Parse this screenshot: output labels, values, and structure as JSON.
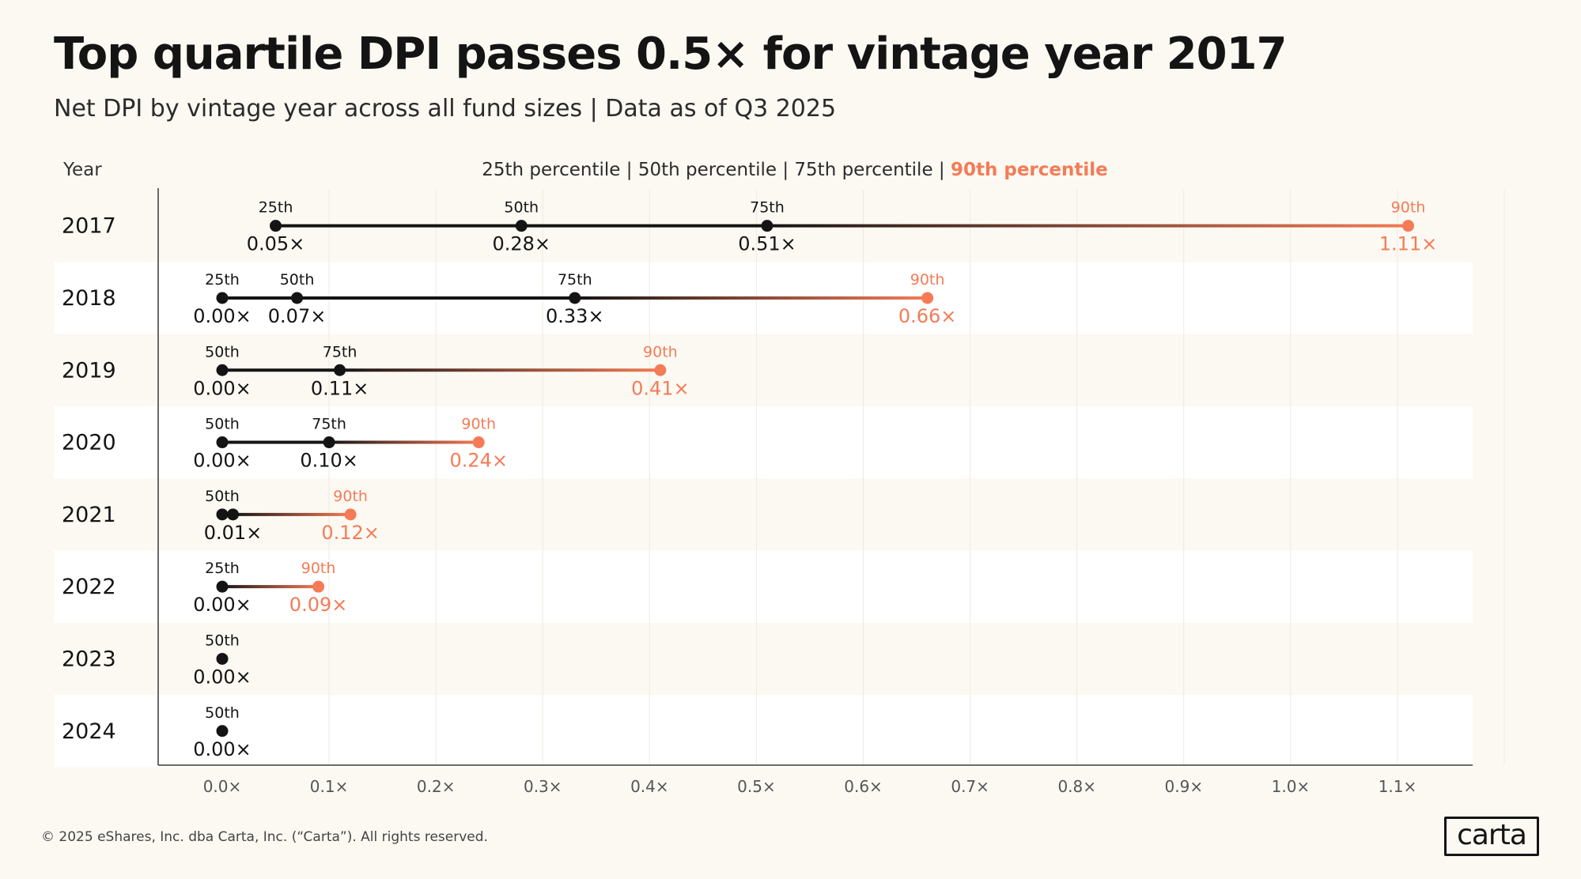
{
  "header": {
    "title": "Top quartile DPI passes 0.5× for vintage year 2017",
    "subtitle": "Net DPI by vintage year across all fund sizes | Data as of Q3 2025"
  },
  "footer": {
    "copyright": "© 2025 eShares, Inc. dba Carta, Inc. (“Carta”). All rights reserved.",
    "logo_text": "carta"
  },
  "chart_data": {
    "type": "dot-range",
    "title": "Top quartile DPI passes 0.5× for vintage year 2017",
    "subtitle": "Net DPI by vintage year across all fund sizes | Data as of Q3 2025",
    "ylabel": "Year",
    "legend": {
      "items": [
        "25th percentile",
        "50th percentile",
        "75th percentile",
        "90th percentile"
      ],
      "separator": "|",
      "placement": "top"
    },
    "xlim": [
      -0.06,
      1.17
    ],
    "x_ticks": [
      0.0,
      0.1,
      0.2,
      0.3,
      0.4,
      0.5,
      0.6,
      0.7,
      0.8,
      0.9,
      1.0,
      1.1
    ],
    "x_tick_labels": [
      "0.0×",
      "0.1×",
      "0.2×",
      "0.3×",
      "0.4×",
      "0.5×",
      "0.6×",
      "0.7×",
      "0.8×",
      "0.9×",
      "1.0×",
      "1.1×"
    ],
    "colors": {
      "dark": "#141414",
      "accent": "#f47b56",
      "band": "#ffffff"
    },
    "rows": [
      {
        "year": "2017",
        "points": [
          {
            "label": "25th",
            "value": 0.05,
            "text": "0.05×",
            "dot": true
          },
          {
            "label": "50th",
            "value": 0.28,
            "text": "0.28×",
            "dot": true
          },
          {
            "label": "75th",
            "value": 0.51,
            "text": "0.51×",
            "dot": true
          },
          {
            "label": "90th",
            "value": 1.11,
            "text": "1.11×",
            "dot": true,
            "accent": true
          }
        ]
      },
      {
        "year": "2018",
        "points": [
          {
            "label": "25th",
            "value": 0.0,
            "text": "0.00×",
            "dot": true
          },
          {
            "label": "50th",
            "value": 0.07,
            "text": "0.07×",
            "dot": true
          },
          {
            "label": "75th",
            "value": 0.33,
            "text": "0.33×",
            "dot": true
          },
          {
            "label": "90th",
            "value": 0.66,
            "text": "0.66×",
            "dot": true,
            "accent": true
          }
        ]
      },
      {
        "year": "2019",
        "points": [
          {
            "label": "50th",
            "value": 0.0,
            "text": "0.00×",
            "dot": true
          },
          {
            "label": "75th",
            "value": 0.11,
            "text": "0.11×",
            "dot": true
          },
          {
            "label": "90th",
            "value": 0.41,
            "text": "0.41×",
            "dot": true,
            "accent": true
          }
        ]
      },
      {
        "year": "2020",
        "points": [
          {
            "label": "50th",
            "value": 0.0,
            "text": "0.00×",
            "dot": true
          },
          {
            "label": "75th",
            "value": 0.1,
            "text": "0.10×",
            "dot": true
          },
          {
            "label": "90th",
            "value": 0.24,
            "text": "0.24×",
            "dot": true,
            "accent": true
          }
        ]
      },
      {
        "year": "2021",
        "points": [
          {
            "label": "50th",
            "value": 0.0,
            "dot": true
          },
          {
            "value": 0.01,
            "text": "0.01×",
            "dot": true
          },
          {
            "label": "90th",
            "value": 0.12,
            "text": "0.12×",
            "dot": true,
            "accent": true
          }
        ]
      },
      {
        "year": "2022",
        "points": [
          {
            "label": "25th",
            "value": 0.0,
            "text": "0.00×",
            "dot": true
          },
          {
            "label": "90th",
            "value": 0.09,
            "text": "0.09×",
            "dot": true,
            "accent": true
          }
        ]
      },
      {
        "year": "2023",
        "points": [
          {
            "label": "50th",
            "value": 0.0,
            "text": "0.00×",
            "dot": true
          }
        ]
      },
      {
        "year": "2024",
        "points": [
          {
            "label": "50th",
            "value": 0.0,
            "text": "0.00×",
            "dot": true
          }
        ]
      }
    ]
  }
}
